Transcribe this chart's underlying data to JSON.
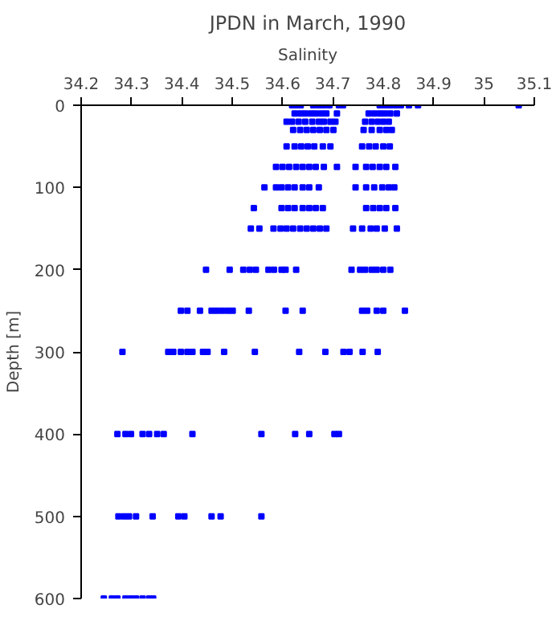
{
  "chart_data": {
    "type": "scatter",
    "title": "JPDN in March, 1990",
    "xlabel": "Salinity",
    "ylabel": "Depth [m]",
    "xlim": [
      34.2,
      35.1
    ],
    "xticks": [
      34.2,
      34.3,
      34.4,
      34.5,
      34.6,
      34.7,
      34.8,
      34.9,
      35,
      35.1
    ],
    "ylim": [
      600,
      0
    ],
    "yticks": [
      0,
      100,
      200,
      300,
      400,
      500,
      600
    ],
    "marker": "square",
    "series": [
      {
        "color": "#0000ff",
        "x": [
          34.619,
          34.627,
          34.636,
          34.661,
          34.672,
          34.682,
          34.693,
          34.712,
          34.72,
          34.793,
          34.804,
          34.814,
          34.825,
          34.835,
          34.851,
          34.869,
          35.069,
          34.624,
          34.635,
          34.645,
          34.656,
          34.666,
          34.677,
          34.687,
          34.708,
          34.771,
          34.782,
          34.793,
          34.803,
          34.814,
          34.827,
          34.608,
          34.619,
          34.632,
          34.645,
          34.659,
          34.672,
          34.682,
          34.695,
          34.705,
          34.764,
          34.777,
          34.789,
          34.8,
          34.811,
          34.621,
          34.635,
          34.648,
          34.661,
          34.674,
          34.687,
          34.701,
          34.761,
          34.777,
          34.793,
          34.806,
          34.817,
          34.608,
          34.624,
          34.637,
          34.65,
          34.663,
          34.68,
          34.695,
          34.758,
          34.772,
          34.785,
          34.8,
          34.813,
          34.587,
          34.6,
          34.613,
          34.627,
          34.64,
          34.653,
          34.666,
          34.682,
          34.708,
          34.745,
          34.766,
          34.779,
          34.793,
          34.806,
          34.824,
          34.564,
          34.587,
          34.598,
          34.611,
          34.624,
          34.64,
          34.653,
          34.672,
          34.745,
          34.766,
          34.782,
          34.798,
          34.811,
          34.822,
          34.543,
          34.598,
          34.611,
          34.624,
          34.64,
          34.653,
          34.666,
          34.68,
          34.766,
          34.78,
          34.793,
          34.806,
          34.824,
          34.537,
          34.554,
          34.582,
          34.596,
          34.608,
          34.621,
          34.635,
          34.648,
          34.661,
          34.674,
          34.687,
          34.74,
          34.758,
          34.775,
          34.787,
          34.803,
          34.827,
          34.448,
          34.495,
          34.522,
          34.535,
          34.547,
          34.572,
          34.583,
          34.598,
          34.606,
          34.627,
          34.737,
          34.754,
          34.764,
          34.777,
          34.787,
          34.8,
          34.814,
          34.398,
          34.411,
          34.436,
          34.459,
          34.469,
          34.48,
          34.491,
          34.501,
          34.533,
          34.606,
          34.64,
          34.758,
          34.768,
          34.787,
          34.8,
          34.843,
          34.282,
          34.373,
          34.383,
          34.398,
          34.411,
          34.421,
          34.442,
          34.451,
          34.484,
          34.545,
          34.633,
          34.685,
          34.721,
          34.733,
          34.759,
          34.789,
          34.272,
          34.288,
          34.299,
          34.322,
          34.335,
          34.351,
          34.364,
          34.421,
          34.558,
          34.625,
          34.653,
          34.703,
          34.712,
          34.274,
          34.285,
          34.295,
          34.309,
          34.342,
          34.393,
          34.405,
          34.459,
          34.477,
          34.558,
          34.245,
          34.261,
          34.272,
          34.288,
          34.299,
          34.309,
          34.322,
          34.335,
          34.343
        ],
        "values": [
          0,
          0,
          0,
          0,
          0,
          0,
          0,
          0,
          0,
          0,
          0,
          0,
          0,
          0,
          0,
          0,
          0,
          10,
          10,
          10,
          10,
          10,
          10,
          10,
          10,
          10,
          10,
          10,
          10,
          10,
          10,
          20,
          20,
          20,
          20,
          20,
          20,
          20,
          20,
          20,
          20,
          20,
          20,
          20,
          20,
          30,
          30,
          30,
          30,
          30,
          30,
          30,
          30,
          30,
          30,
          30,
          30,
          50,
          50,
          50,
          50,
          50,
          50,
          50,
          50,
          50,
          50,
          50,
          50,
          75,
          75,
          75,
          75,
          75,
          75,
          75,
          75,
          75,
          75,
          75,
          75,
          75,
          75,
          75,
          100,
          100,
          100,
          100,
          100,
          100,
          100,
          100,
          100,
          100,
          100,
          100,
          100,
          100,
          125,
          125,
          125,
          125,
          125,
          125,
          125,
          125,
          125,
          125,
          125,
          125,
          125,
          150,
          150,
          150,
          150,
          150,
          150,
          150,
          150,
          150,
          150,
          150,
          150,
          150,
          150,
          150,
          150,
          150,
          200,
          200,
          200,
          200,
          200,
          200,
          200,
          200,
          200,
          200,
          200,
          200,
          200,
          200,
          200,
          200,
          200,
          250,
          250,
          250,
          250,
          250,
          250,
          250,
          250,
          250,
          250,
          250,
          250,
          250,
          250,
          250,
          250,
          300,
          300,
          300,
          300,
          300,
          300,
          300,
          300,
          300,
          300,
          300,
          300,
          300,
          300,
          300,
          300,
          400,
          400,
          400,
          400,
          400,
          400,
          400,
          400,
          400,
          400,
          400,
          400,
          400,
          500,
          500,
          500,
          500,
          500,
          500,
          500,
          500,
          500,
          500,
          600,
          600,
          600,
          600,
          600,
          600,
          600,
          600,
          600
        ]
      }
    ]
  }
}
